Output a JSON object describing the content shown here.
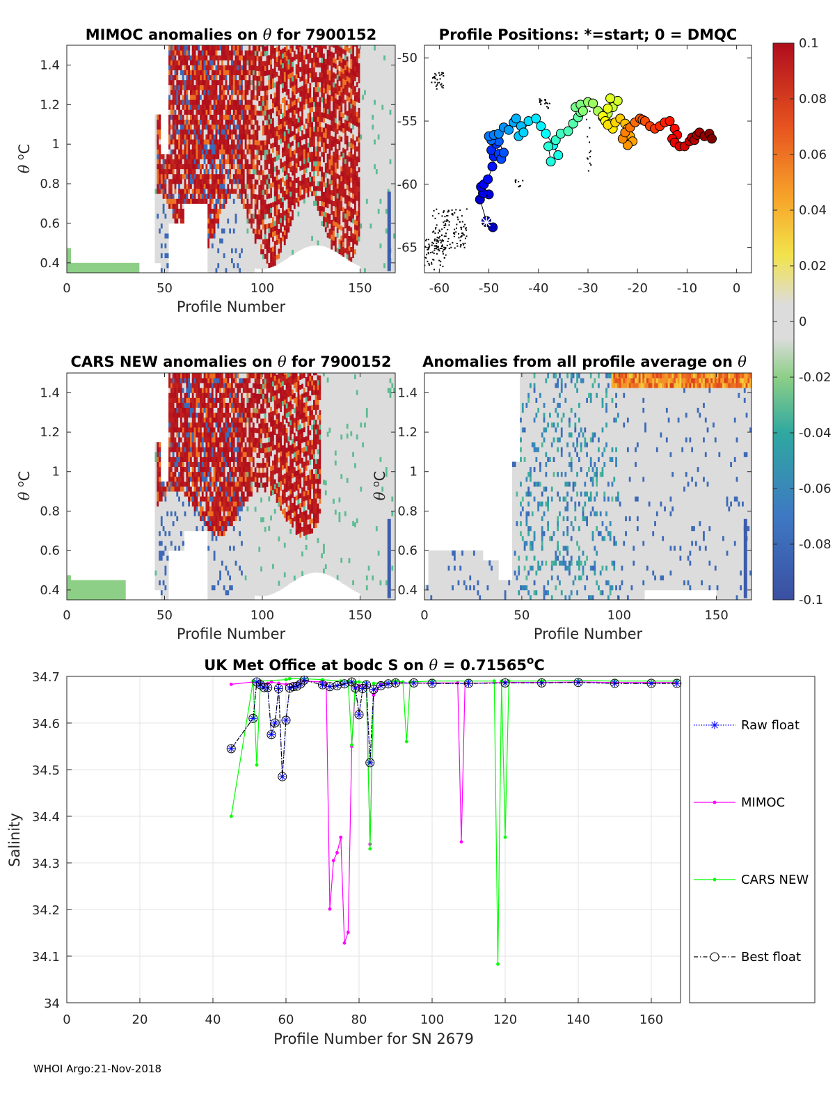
{
  "footer": "WHOI Argo:21-Nov-2018",
  "colorbar": {
    "ticks": [
      "0.1",
      "0.08",
      "0.06",
      "0.04",
      "0.02",
      "0",
      "-0.02",
      "-0.04",
      "-0.06",
      "-0.08",
      "-0.1"
    ],
    "range": [
      -0.1,
      0.1
    ]
  },
  "chart_data": [
    {
      "id": "mimoc",
      "type": "heatmap",
      "title_prefix": "MIMOC anomalies on ",
      "title_symbol": "θ",
      "title_suffix": "  for 7900152",
      "xlabel": "Profile Number",
      "ylabel_symbol": "θ",
      "ylabel_unit": "C",
      "ylabel_sup": "o",
      "xlim": [
        0,
        168
      ],
      "ylim": [
        0.35,
        1.5
      ],
      "xticks": [
        "0",
        "50",
        "100",
        "150"
      ],
      "yticks": [
        "0.4",
        "0.6",
        "0.8",
        "1",
        "1.2",
        "1.4"
      ]
    },
    {
      "id": "positions",
      "type": "scatter",
      "title": "Profile Positions: *=start; 0 = DMQC",
      "xlim": [
        -63,
        3
      ],
      "ylim": [
        -67,
        -49
      ],
      "xticks": [
        "-60",
        "-50",
        "-40",
        "-30",
        "-20",
        "-10",
        "0"
      ],
      "yticks": [
        "-50",
        "-55",
        "-60",
        "-65"
      ],
      "x": [
        -50.5,
        -49.2,
        -50.5,
        -51.8,
        -50.0,
        -51.2,
        -51.6,
        -51.0,
        -50.2,
        -49.3,
        -49.0,
        -49.5,
        -48.5,
        -48.0,
        -47.5,
        -47.0,
        -48.0,
        -49.5,
        -50.0,
        -49.0,
        -48.0,
        -47.0,
        -46.0,
        -45.0,
        -44.5,
        -43.5,
        -44.0,
        -43.0,
        -42.0,
        -40.5,
        -39.5,
        -38.5,
        -37.0,
        -36.0,
        -37.5,
        -38.0,
        -36.5,
        -35.5,
        -34.0,
        -33.0,
        -32.0,
        -31.5,
        -32.5,
        -31.5,
        -31.0,
        -30.0,
        -29.0,
        -28.0,
        -27.0,
        -26.0,
        -25.0,
        -24.0,
        -25.5,
        -26.0,
        -27.0,
        -26.5,
        -25.5,
        -25.0,
        -26.0,
        -24.5,
        -23.5,
        -22.5,
        -22.0,
        -21.5,
        -21.0,
        -22.0,
        -23.0,
        -22.5,
        -21.5,
        -20.5,
        -19.5,
        -19.0,
        -18.5,
        -17.5,
        -16.5,
        -15.5,
        -14.5,
        -13.5,
        -12.5,
        -12.0,
        -13.0,
        -12.5,
        -11.5,
        -10.5,
        -9.5,
        -9.0,
        -8.5,
        -8.0,
        -7.5,
        -6.5,
        -5.5,
        -5.0
      ],
      "y": [
        -63.0,
        -63.4,
        -62.9,
        -61.2,
        -60.8,
        -60.7,
        -60.2,
        -60.0,
        -59.6,
        -58.6,
        -57.8,
        -57.3,
        -56.8,
        -57.6,
        -58.0,
        -57.5,
        -56.6,
        -56.5,
        -56.2,
        -56.1,
        -56.0,
        -55.5,
        -55.7,
        -55.1,
        -54.8,
        -55.4,
        -56.2,
        -55.9,
        -55.0,
        -54.8,
        -55.4,
        -56.0,
        -56.9,
        -57.7,
        -58.2,
        -57.0,
        -56.5,
        -56.0,
        -55.8,
        -55.2,
        -54.7,
        -54.3,
        -53.9,
        -53.7,
        -54.2,
        -53.5,
        -53.6,
        -54.2,
        -54.7,
        -54.4,
        -53.9,
        -53.4,
        -53.2,
        -54.0,
        -54.6,
        -55.0,
        -55.2,
        -55.6,
        -55.3,
        -55.1,
        -54.8,
        -55.2,
        -55.6,
        -56.2,
        -56.6,
        -56.9,
        -56.4,
        -55.9,
        -55.5,
        -55.1,
        -54.8,
        -54.9,
        -55.0,
        -55.4,
        -55.6,
        -55.4,
        -55.1,
        -55.0,
        -55.6,
        -56.1,
        -56.4,
        -56.7,
        -57.0,
        -57.0,
        -56.6,
        -56.3,
        -56.5,
        -56.1,
        -55.9,
        -56.2,
        -56.0,
        -56.4
      ]
    },
    {
      "id": "cars",
      "type": "heatmap",
      "title_prefix": "CARS NEW anomalies on ",
      "title_symbol": "θ",
      "title_suffix": " for 7900152",
      "xlabel": "Profile Number",
      "ylabel_symbol": "θ",
      "ylabel_unit": "C",
      "ylabel_sup": "o",
      "xlim": [
        0,
        168
      ],
      "ylim": [
        0.35,
        1.5
      ],
      "xticks": [
        "0",
        "50",
        "100",
        "150"
      ],
      "yticks": [
        "0.4",
        "0.6",
        "0.8",
        "1",
        "1.2",
        "1.4"
      ]
    },
    {
      "id": "allavg",
      "type": "heatmap",
      "title_prefix": "Anomalies from all profile average on ",
      "title_symbol": "θ",
      "title_suffix": "",
      "xlabel": "Profile Number",
      "ylabel_symbol": "θ",
      "ylabel_unit": "C",
      "ylabel_sup": "o",
      "xlim": [
        0,
        168
      ],
      "ylim": [
        0.35,
        1.5
      ],
      "xticks": [
        "0",
        "50",
        "100",
        "150"
      ],
      "yticks": [
        "0.4",
        "0.6",
        "0.8",
        "1",
        "1.2",
        "1.4"
      ]
    },
    {
      "id": "salinity",
      "type": "line",
      "title_prefix": "UK Met Office at bodc S on ",
      "title_symbol": "θ",
      "title_value": " = 0.71565",
      "title_sup": "o",
      "title_unit": "C",
      "xlabel": "Profile Number for SN 2679",
      "ylabel": "Salinity",
      "xlim": [
        0,
        168
      ],
      "ylim": [
        34.0,
        34.7
      ],
      "xticks": [
        "0",
        "20",
        "40",
        "60",
        "80",
        "100",
        "120",
        "140",
        "160"
      ],
      "yticks": [
        "34",
        "34.1",
        "34.2",
        "34.3",
        "34.4",
        "34.5",
        "34.6",
        "34.7"
      ],
      "legend": [
        "Raw float",
        "MIMOC",
        "CARS NEW",
        "Best float"
      ],
      "series": [
        {
          "name": "Raw float",
          "color": "#0000ff",
          "points": [
            [
              45,
              34.545
            ],
            [
              51,
              34.61
            ],
            [
              52,
              34.688
            ],
            [
              53,
              34.682
            ],
            [
              54,
              34.676
            ],
            [
              55,
              34.676
            ],
            [
              56,
              34.575
            ],
            [
              57,
              34.6
            ],
            [
              58,
              34.674
            ],
            [
              59,
              34.485
            ],
            [
              60,
              34.606
            ],
            [
              61,
              34.675
            ],
            [
              62,
              34.678
            ],
            [
              63,
              34.679
            ],
            [
              64,
              34.684
            ],
            [
              65,
              34.692
            ],
            [
              70,
              34.682
            ],
            [
              72,
              34.678
            ],
            [
              74,
              34.68
            ],
            [
              76,
              34.684
            ],
            [
              78,
              34.688
            ],
            [
              79,
              34.675
            ],
            [
              80,
              34.618
            ],
            [
              81,
              34.674
            ],
            [
              82,
              34.682
            ],
            [
              83,
              34.515
            ],
            [
              84,
              34.672
            ],
            [
              86,
              34.68
            ],
            [
              88,
              34.684
            ],
            [
              90,
              34.686
            ],
            [
              95,
              34.686
            ],
            [
              100,
              34.685
            ],
            [
              110,
              34.685
            ],
            [
              120,
              34.686
            ],
            [
              130,
              34.686
            ],
            [
              140,
              34.687
            ],
            [
              150,
              34.685
            ],
            [
              160,
              34.685
            ],
            [
              167,
              34.685
            ]
          ]
        },
        {
          "name": "MIMOC",
          "color": "#ff00ff",
          "points": [
            [
              45,
              34.683
            ],
            [
              51,
              34.688
            ],
            [
              55,
              34.685
            ],
            [
              56,
              34.688
            ],
            [
              58,
              34.685
            ],
            [
              60,
              34.683
            ],
            [
              65,
              34.69
            ],
            [
              70,
              34.688
            ],
            [
              71,
              34.685
            ],
            [
              72,
              34.201
            ],
            [
              73,
              34.305
            ],
            [
              74,
              34.322
            ],
            [
              75,
              34.355
            ],
            [
              76,
              34.128
            ],
            [
              77,
              34.151
            ],
            [
              78,
              34.55
            ],
            [
              79,
              34.675
            ],
            [
              80,
              34.68
            ],
            [
              82,
              34.678
            ],
            [
              83,
              34.34
            ],
            [
              84,
              34.66
            ],
            [
              86,
              34.685
            ],
            [
              100,
              34.686
            ],
            [
              107,
              34.686
            ],
            [
              108,
              34.345
            ],
            [
              109,
              34.685
            ],
            [
              120,
              34.687
            ],
            [
              130,
              34.687
            ],
            [
              140,
              34.688
            ],
            [
              150,
              34.687
            ],
            [
              167,
              34.687
            ]
          ]
        },
        {
          "name": "CARS NEW",
          "color": "#00ff00",
          "points": [
            [
              45,
              34.4
            ],
            [
              51,
              34.69
            ],
            [
              52,
              34.51
            ],
            [
              53,
              34.69
            ],
            [
              60,
              34.693
            ],
            [
              61,
              34.695
            ],
            [
              65,
              34.695
            ],
            [
              70,
              34.693
            ],
            [
              75,
              34.69
            ],
            [
              77,
              34.689
            ],
            [
              78,
              34.553
            ],
            [
              79,
              34.688
            ],
            [
              80,
              34.688
            ],
            [
              82,
              34.687
            ],
            [
              83,
              34.33
            ],
            [
              84,
              34.685
            ],
            [
              90,
              34.69
            ],
            [
              92,
              34.688
            ],
            [
              93,
              34.56
            ],
            [
              94,
              34.688
            ],
            [
              100,
              34.69
            ],
            [
              110,
              34.69
            ],
            [
              117,
              34.69
            ],
            [
              118,
              34.083
            ],
            [
              119,
              34.69
            ],
            [
              120,
              34.355
            ],
            [
              121,
              34.69
            ],
            [
              130,
              34.69
            ],
            [
              140,
              34.691
            ],
            [
              150,
              34.69
            ],
            [
              167,
              34.69
            ]
          ]
        },
        {
          "name": "Best float",
          "color": "#000000",
          "points": [
            [
              45,
              34.545
            ],
            [
              51,
              34.61
            ],
            [
              52,
              34.688
            ],
            [
              53,
              34.682
            ],
            [
              54,
              34.676
            ],
            [
              55,
              34.676
            ],
            [
              56,
              34.575
            ],
            [
              57,
              34.6
            ],
            [
              58,
              34.674
            ],
            [
              59,
              34.485
            ],
            [
              60,
              34.606
            ],
            [
              61,
              34.675
            ],
            [
              62,
              34.678
            ],
            [
              63,
              34.679
            ],
            [
              64,
              34.684
            ],
            [
              65,
              34.692
            ],
            [
              70,
              34.682
            ],
            [
              72,
              34.678
            ],
            [
              74,
              34.68
            ],
            [
              76,
              34.684
            ],
            [
              78,
              34.688
            ],
            [
              79,
              34.675
            ],
            [
              80,
              34.618
            ],
            [
              81,
              34.674
            ],
            [
              82,
              34.682
            ],
            [
              83,
              34.515
            ],
            [
              84,
              34.672
            ],
            [
              86,
              34.68
            ],
            [
              88,
              34.684
            ],
            [
              90,
              34.686
            ],
            [
              95,
              34.686
            ],
            [
              100,
              34.685
            ],
            [
              110,
              34.685
            ],
            [
              120,
              34.686
            ],
            [
              130,
              34.686
            ],
            [
              140,
              34.687
            ],
            [
              150,
              34.685
            ],
            [
              160,
              34.685
            ],
            [
              167,
              34.685
            ]
          ]
        }
      ]
    }
  ]
}
